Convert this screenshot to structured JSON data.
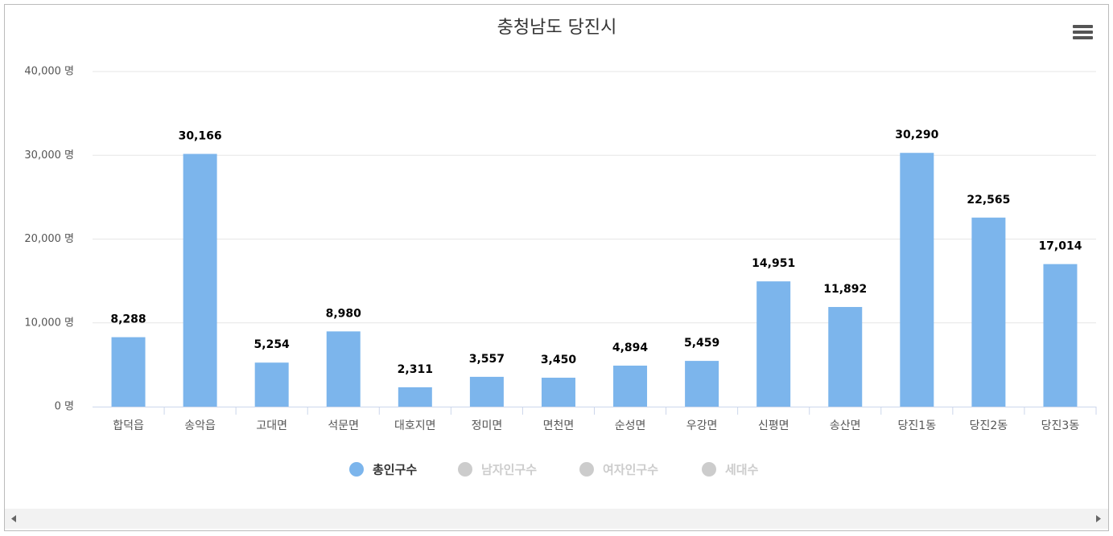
{
  "chart_data": {
    "type": "bar",
    "title": "충청남도 당진시",
    "categories": [
      "합덕읍",
      "송악읍",
      "고대면",
      "석문면",
      "대호지면",
      "정미면",
      "면천면",
      "순성면",
      "우강면",
      "신평면",
      "송산면",
      "당진1동",
      "당진2동",
      "당진3동"
    ],
    "series": [
      {
        "name": "총인구수",
        "color": "#7cb5ec",
        "values": [
          8288,
          30166,
          5254,
          8980,
          2311,
          3557,
          3450,
          4894,
          5459,
          14951,
          11892,
          30290,
          22565,
          17014
        ],
        "value_labels": [
          "8,288",
          "30,166",
          "5,254",
          "8,980",
          "2,311",
          "3,557",
          "3,450",
          "4,894",
          "5,459",
          "14,951",
          "11,892",
          "30,290",
          "22,565",
          "17,014"
        ]
      }
    ],
    "hidden_series": [
      "남자인구수",
      "여자인구수",
      "세대수"
    ],
    "ylim": [
      0,
      40000
    ],
    "yticks": [
      {
        "value": 0,
        "label": "0 명"
      },
      {
        "value": 10000,
        "label": "10,000 명"
      },
      {
        "value": 20000,
        "label": "20,000 명"
      },
      {
        "value": 30000,
        "label": "30,000 명"
      },
      {
        "value": 40000,
        "label": "40,000 명"
      }
    ],
    "grid": true
  }
}
